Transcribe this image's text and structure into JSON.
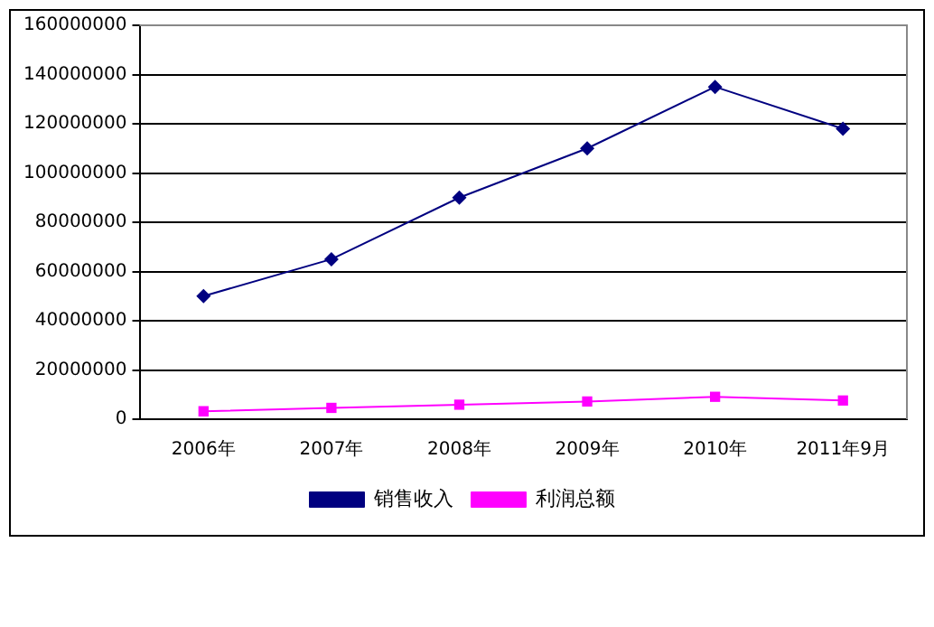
{
  "chart_data": {
    "type": "line",
    "categories": [
      "2006年",
      "2007年",
      "2008年",
      "2009年",
      "2010年",
      "2011年9月"
    ],
    "series": [
      {
        "name": "销售收入",
        "color": "#000080",
        "marker": "diamond",
        "values": [
          50000000,
          65000000,
          90000000,
          110000000,
          135000000,
          118000000
        ]
      },
      {
        "name": "利润总额",
        "color": "#ff00ff",
        "marker": "square",
        "values": [
          3200000,
          4600000,
          5900000,
          7200000,
          9100000,
          7600000
        ]
      }
    ],
    "ylim": [
      0,
      160000000
    ],
    "yticks": [
      0,
      20000000,
      40000000,
      60000000,
      80000000,
      100000000,
      120000000,
      140000000,
      160000000
    ],
    "grid": "y",
    "legend": "bottom"
  }
}
